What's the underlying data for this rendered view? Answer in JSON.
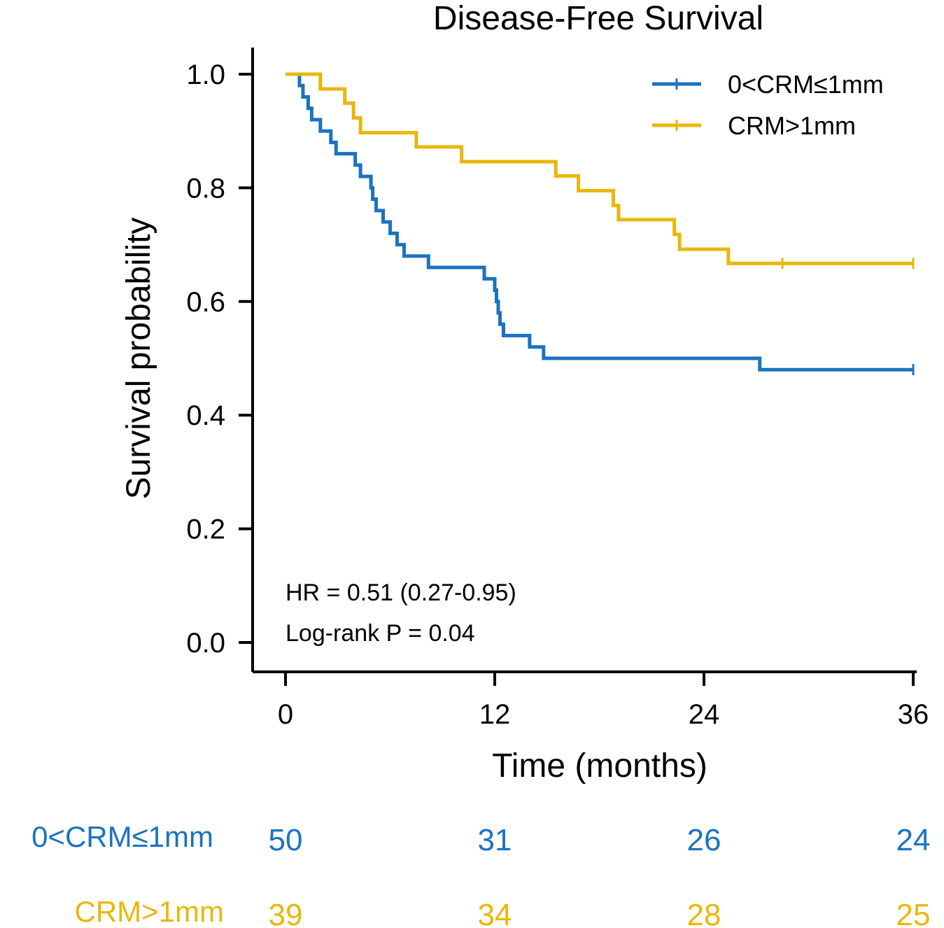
{
  "chart_data": {
    "type": "line",
    "subtype": "kaplan-meier",
    "title": "Disease-Free Survival",
    "xlabel": "Time (months)",
    "ylabel": "Survival probability",
    "xlim": [
      0,
      36
    ],
    "ylim": [
      0,
      1
    ],
    "xticks": [
      0,
      12,
      24,
      36
    ],
    "xtick_labels": [
      "0",
      "12",
      "24",
      "36"
    ],
    "yticks": [
      0,
      0.2,
      0.4,
      0.6,
      0.8,
      1.0
    ],
    "ytick_labels": [
      "0.0",
      "0.2",
      "0.4",
      "0.6",
      "0.8",
      "1.0"
    ],
    "legend_position": "top-right",
    "series": [
      {
        "name": "0<CRM≤1mm",
        "color": "#1a73c0",
        "x": [
          0,
          0.8,
          1.0,
          1.3,
          1.5,
          2.0,
          2.6,
          2.9,
          3.2,
          4.0,
          4.3,
          4.7,
          4.9,
          5.0,
          5.2,
          5.6,
          6.0,
          6.4,
          6.8,
          8.2,
          11.4,
          11.7,
          12.0,
          12.1,
          12.2,
          12.3,
          12.5,
          14.0,
          14.8,
          27.2,
          36.0
        ],
        "y": [
          1.0,
          0.98,
          0.96,
          0.94,
          0.92,
          0.9,
          0.88,
          0.86,
          0.86,
          0.84,
          0.82,
          0.82,
          0.8,
          0.78,
          0.76,
          0.74,
          0.72,
          0.7,
          0.68,
          0.66,
          0.64,
          0.64,
          0.62,
          0.6,
          0.58,
          0.56,
          0.54,
          0.52,
          0.5,
          0.48,
          0.48
        ],
        "censor_x": [
          36.0
        ],
        "at_risk": [
          50,
          31,
          26,
          24
        ]
      },
      {
        "name": "CRM>1mm",
        "color": "#e9b709",
        "x": [
          0,
          2.0,
          3.4,
          3.9,
          4.3,
          7.5,
          10.1,
          15.5,
          16.8,
          18.8,
          19.1,
          22.3,
          22.6,
          25.4,
          36.0
        ],
        "y": [
          1.0,
          0.974,
          0.949,
          0.923,
          0.897,
          0.872,
          0.846,
          0.821,
          0.795,
          0.769,
          0.744,
          0.718,
          0.692,
          0.667,
          0.667
        ],
        "censor_x": [
          28.5,
          36.0
        ],
        "at_risk": [
          39,
          34,
          28,
          25
        ]
      }
    ],
    "annotations": [
      "HR = 0.51 (0.27-0.95)",
      "Log-rank P = 0.04"
    ],
    "risk_table": {
      "times": [
        0,
        12,
        24,
        36
      ]
    }
  }
}
